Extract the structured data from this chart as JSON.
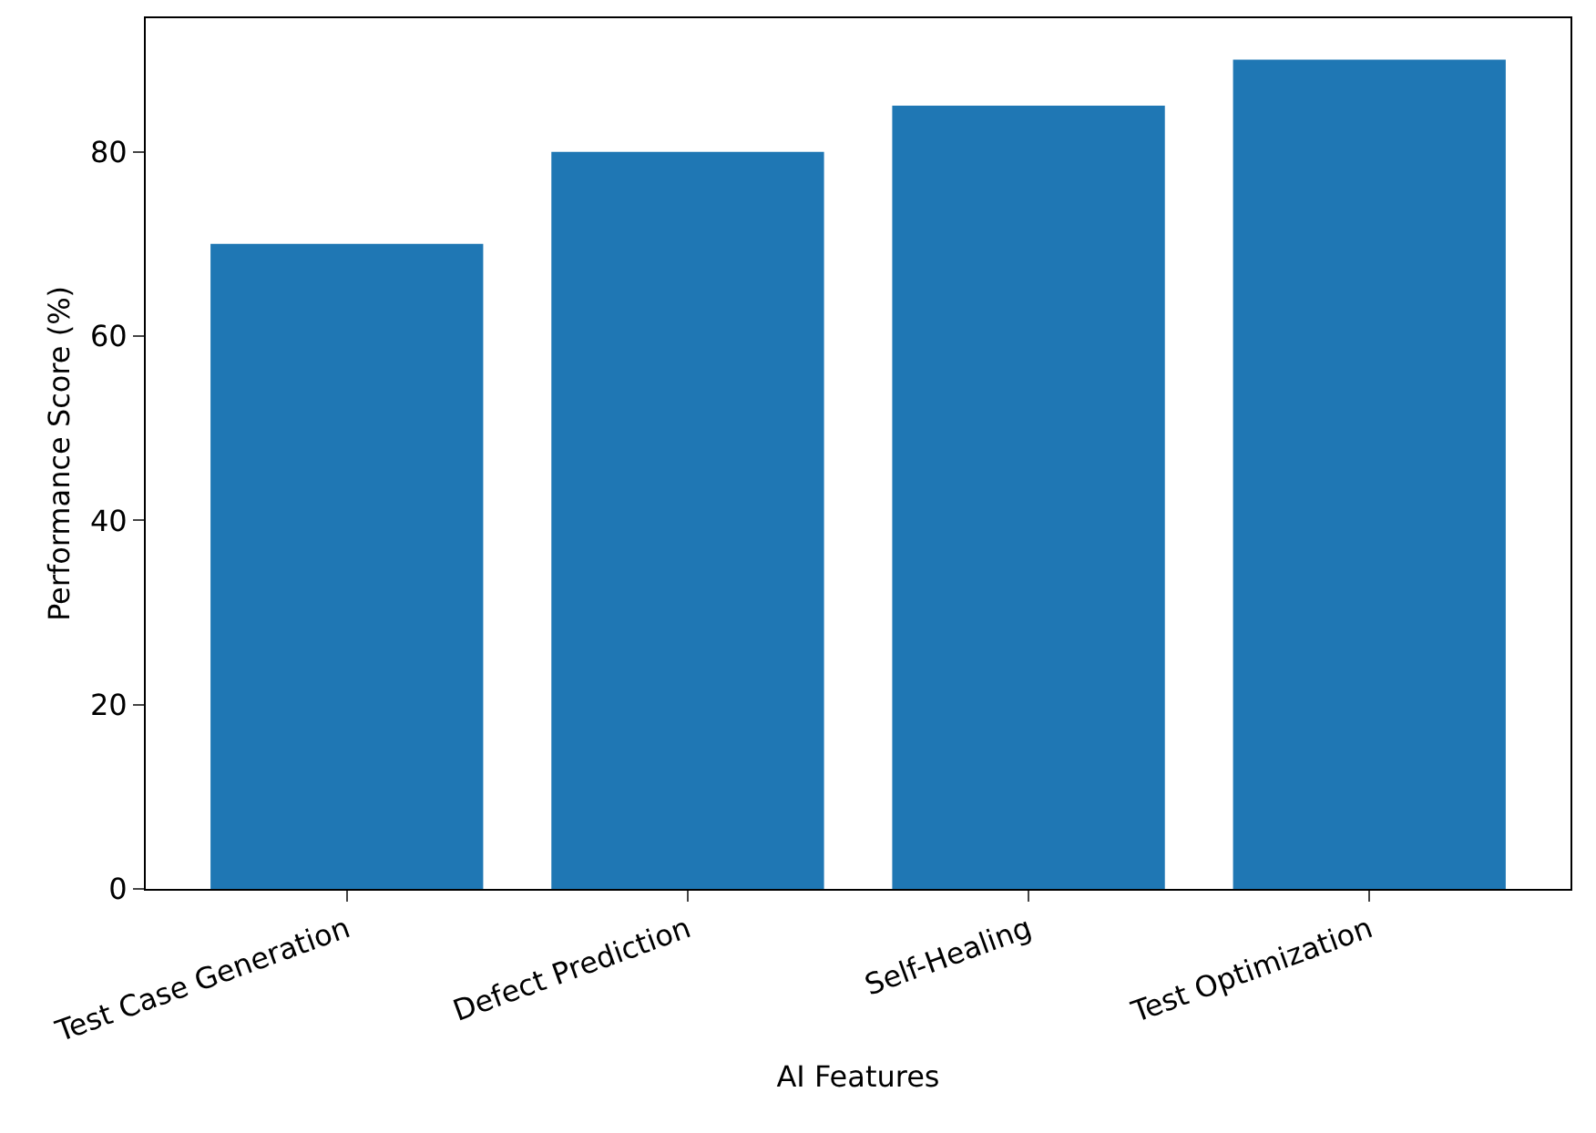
{
  "chart_data": {
    "type": "bar",
    "xlabel": "AI Features",
    "ylabel": "Performance Score (%)",
    "categories": [
      "Test Case Generation",
      "Defect Prediction",
      "Self-Healing",
      "Test Optimization"
    ],
    "values": [
      70,
      80,
      85,
      90
    ],
    "color": "#1f77b4",
    "ylim": [
      0,
      94.5
    ],
    "yticks": [
      0,
      20,
      40,
      60,
      80
    ],
    "grid": false
  }
}
